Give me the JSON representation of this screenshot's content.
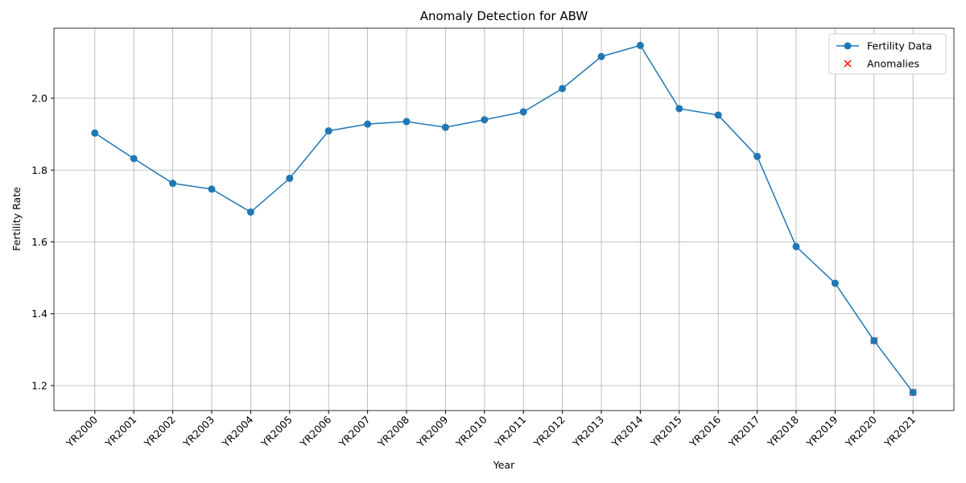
{
  "chart_data": {
    "type": "line",
    "title": "Anomaly Detection for ABW",
    "x_label": "Year",
    "y_label": "Fertility Rate",
    "categories": [
      "YR2000",
      "YR2001",
      "YR2002",
      "YR2003",
      "YR2004",
      "YR2005",
      "YR2006",
      "YR2007",
      "YR2008",
      "YR2009",
      "YR2010",
      "YR2011",
      "YR2012",
      "YR2013",
      "YR2014",
      "YR2015",
      "YR2016",
      "YR2017",
      "YR2018",
      "YR2019",
      "YR2020",
      "YR2021"
    ],
    "series": [
      {
        "name": "Fertility Data",
        "color": "#1f77b4",
        "marker": "circle",
        "values": [
          1.903,
          1.832,
          1.763,
          1.747,
          1.683,
          1.777,
          1.909,
          1.928,
          1.935,
          1.919,
          1.94,
          1.962,
          2.027,
          2.116,
          2.147,
          1.971,
          1.953,
          1.838,
          1.587,
          1.485,
          1.325,
          1.181
        ]
      },
      {
        "name": "Anomalies",
        "color": "#ff0000",
        "marker": "x",
        "values": [
          null,
          null,
          null,
          null,
          null,
          null,
          null,
          null,
          null,
          null,
          null,
          null,
          null,
          null,
          null,
          null,
          null,
          null,
          null,
          null,
          1.325,
          1.181
        ]
      }
    ],
    "ylim": [
      1.1305,
      2.195
    ],
    "yticks": [
      1.2,
      1.4,
      1.6,
      1.8,
      {
        "value": 2,
        "label": "2.0"
      }
    ],
    "grid": true,
    "legend": "upper right"
  }
}
